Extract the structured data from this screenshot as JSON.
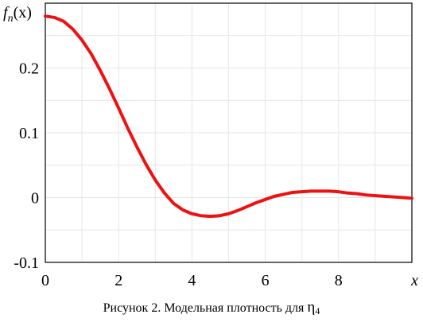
{
  "chart_data": {
    "type": "line",
    "title": "",
    "ylabel_prefix": "f",
    "ylabel_subscript": "n",
    "ylabel_suffix": "(x)",
    "xlabel": "x",
    "xlim": [
      0,
      10
    ],
    "ylim": [
      -0.1,
      0.3
    ],
    "x_ticks": [
      "0",
      "2",
      "4",
      "6",
      "8"
    ],
    "x_tick_values": [
      0,
      2,
      4,
      6,
      8
    ],
    "y_ticks": [
      "-0.1",
      "0",
      "0.1",
      "0.2"
    ],
    "y_tick_values": [
      -0.1,
      0,
      0.1,
      0.2
    ],
    "grid": true,
    "line_color": "#ee1111",
    "series": [
      {
        "x": [
          0,
          0.25,
          0.5,
          0.75,
          1.0,
          1.25,
          1.5,
          1.75,
          2.0,
          2.25,
          2.5,
          2.75,
          3.0,
          3.25,
          3.5,
          3.75,
          4.0,
          4.25,
          4.5,
          4.75,
          5.0,
          5.25,
          5.5,
          5.75,
          6.0,
          6.25,
          6.5,
          6.75,
          7.0,
          7.25,
          7.5,
          7.75,
          8.0,
          8.25,
          8.5,
          8.75,
          9.0,
          9.25,
          9.5,
          9.75,
          10.0
        ],
        "values": [
          0.28,
          0.278,
          0.272,
          0.26,
          0.243,
          0.222,
          0.196,
          0.168,
          0.138,
          0.107,
          0.078,
          0.051,
          0.027,
          0.007,
          -0.009,
          -0.019,
          -0.025,
          -0.028,
          -0.029,
          -0.028,
          -0.025,
          -0.02,
          -0.014,
          -0.008,
          -0.003,
          0.002,
          0.005,
          0.008,
          0.009,
          0.01,
          0.01,
          0.01,
          0.009,
          0.007,
          0.006,
          0.004,
          0.003,
          0.002,
          0.001,
          0.0,
          -0.001
        ]
      }
    ]
  },
  "caption": {
    "text": "Рисунок 2. Модельная плотность для",
    "symbol": "η",
    "symbol_subscript": "4"
  }
}
